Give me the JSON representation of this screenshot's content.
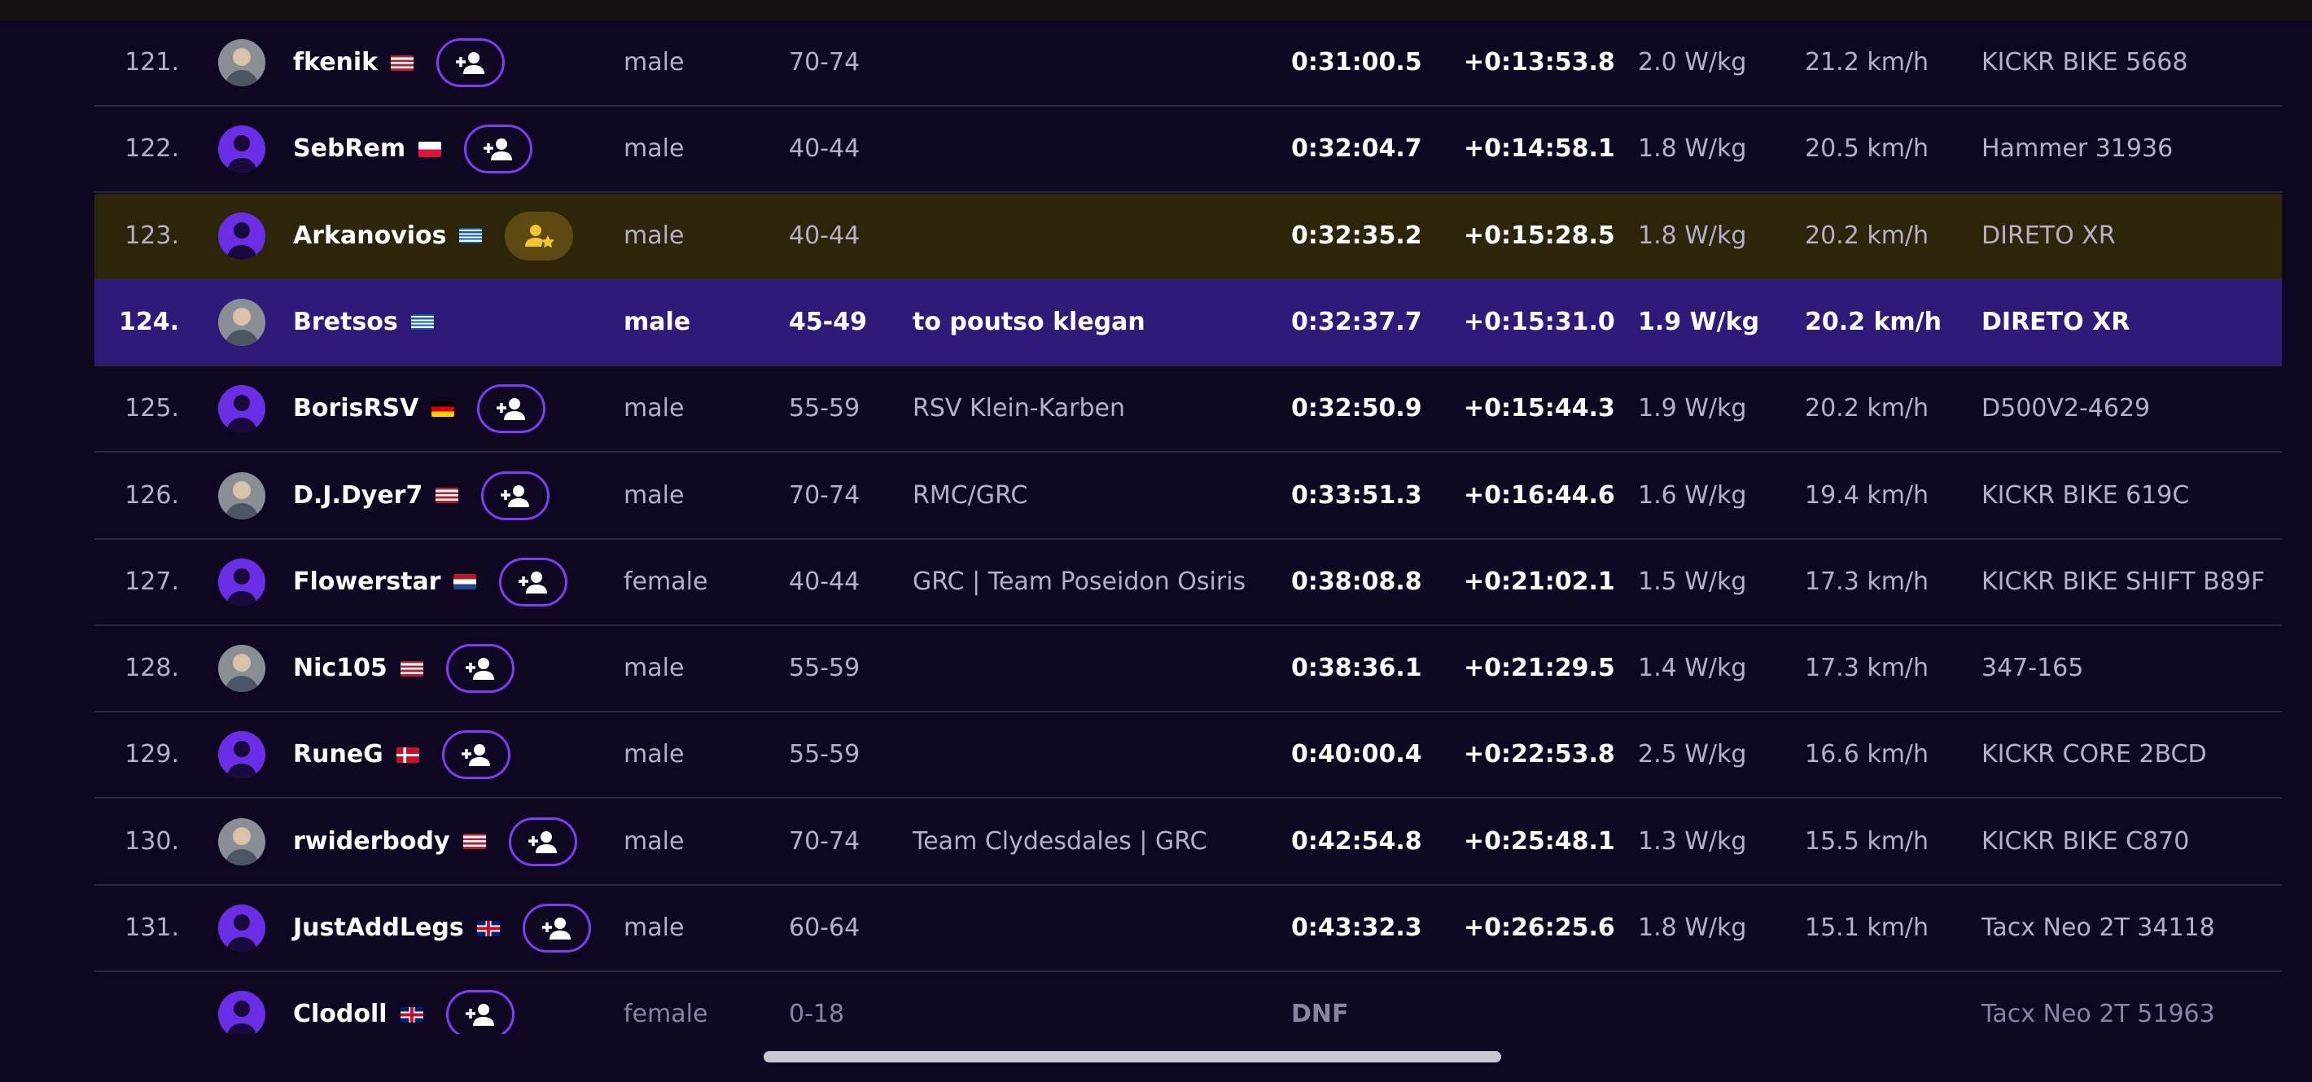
{
  "rows": [
    {
      "rank": "121.",
      "name": "fkenik",
      "gender": "male",
      "age": "70-74",
      "time": "0:31:00.5",
      "gap": "+0:13:53.8",
      "wkg": "2.0 W/kg",
      "speed": "21.2 km/h",
      "trainer": "KICKR BIKE 5668"
    },
    {
      "rank": "122.",
      "name": "SebRem",
      "gender": "male",
      "age": "40-44",
      "time": "0:32:04.7",
      "gap": "+0:14:58.1",
      "wkg": "1.8 W/kg",
      "speed": "20.5 km/h",
      "trainer": "Hammer 31936"
    },
    {
      "rank": "123.",
      "name": "Arkanovios",
      "gender": "male",
      "age": "40-44",
      "time": "0:32:35.2",
      "gap": "+0:15:28.5",
      "wkg": "1.8 W/kg",
      "speed": "20.2 km/h",
      "trainer": "DIRETO XR"
    },
    {
      "rank": "124.",
      "name": "Bretsos",
      "gender": "male",
      "age": "45-49",
      "team": "to poutso klegan",
      "time": "0:32:37.7",
      "gap": "+0:15:31.0",
      "wkg": "1.9 W/kg",
      "speed": "20.2 km/h",
      "trainer": "DIRETO XR"
    },
    {
      "rank": "125.",
      "name": "BorisRSV",
      "gender": "male",
      "age": "55-59",
      "team": "RSV Klein-Karben",
      "time": "0:32:50.9",
      "gap": "+0:15:44.3",
      "wkg": "1.9 W/kg",
      "speed": "20.2 km/h",
      "trainer": "D500V2-4629"
    },
    {
      "rank": "126.",
      "name": "D.J.Dyer7",
      "gender": "male",
      "age": "70-74",
      "team": "RMC/GRC",
      "time": "0:33:51.3",
      "gap": "+0:16:44.6",
      "wkg": "1.6 W/kg",
      "speed": "19.4 km/h",
      "trainer": "KICKR BIKE 619C"
    },
    {
      "rank": "127.",
      "name": "Flowerstar",
      "gender": "female",
      "age": "40-44",
      "team": "GRC | Team Poseidon Osiris",
      "time": "0:38:08.8",
      "gap": "+0:21:02.1",
      "wkg": "1.5 W/kg",
      "speed": "17.3 km/h",
      "trainer": "KICKR BIKE SHIFT B89F"
    },
    {
      "rank": "128.",
      "name": "Nic105",
      "gender": "male",
      "age": "55-59",
      "time": "0:38:36.1",
      "gap": "+0:21:29.5",
      "wkg": "1.4 W/kg",
      "speed": "17.3 km/h",
      "trainer": "347-165"
    },
    {
      "rank": "129.",
      "name": "RuneG",
      "gender": "male",
      "age": "55-59",
      "time": "0:40:00.4",
      "gap": "+0:22:53.8",
      "wkg": "2.5 W/kg",
      "speed": "16.6 km/h",
      "trainer": "KICKR CORE 2BCD"
    },
    {
      "rank": "130.",
      "name": "rwiderbody",
      "gender": "male",
      "age": "70-74",
      "team": "Team Clydesdales | GRC",
      "time": "0:42:54.8",
      "gap": "+0:25:48.1",
      "wkg": "1.3 W/kg",
      "speed": "15.5 km/h",
      "trainer": "KICKR BIKE C870"
    },
    {
      "rank": "131.",
      "name": "JustAddLegs",
      "gender": "male",
      "age": "60-64",
      "time": "0:43:32.3",
      "gap": "+0:26:25.6",
      "wkg": "1.8 W/kg",
      "speed": "15.1 km/h",
      "trainer": "Tacx Neo 2T 34118"
    },
    {
      "name": "Clodoll",
      "gender": "female",
      "age": "0-18",
      "time": "DNF",
      "trainer": "Tacx Neo 2T 51963"
    }
  ]
}
